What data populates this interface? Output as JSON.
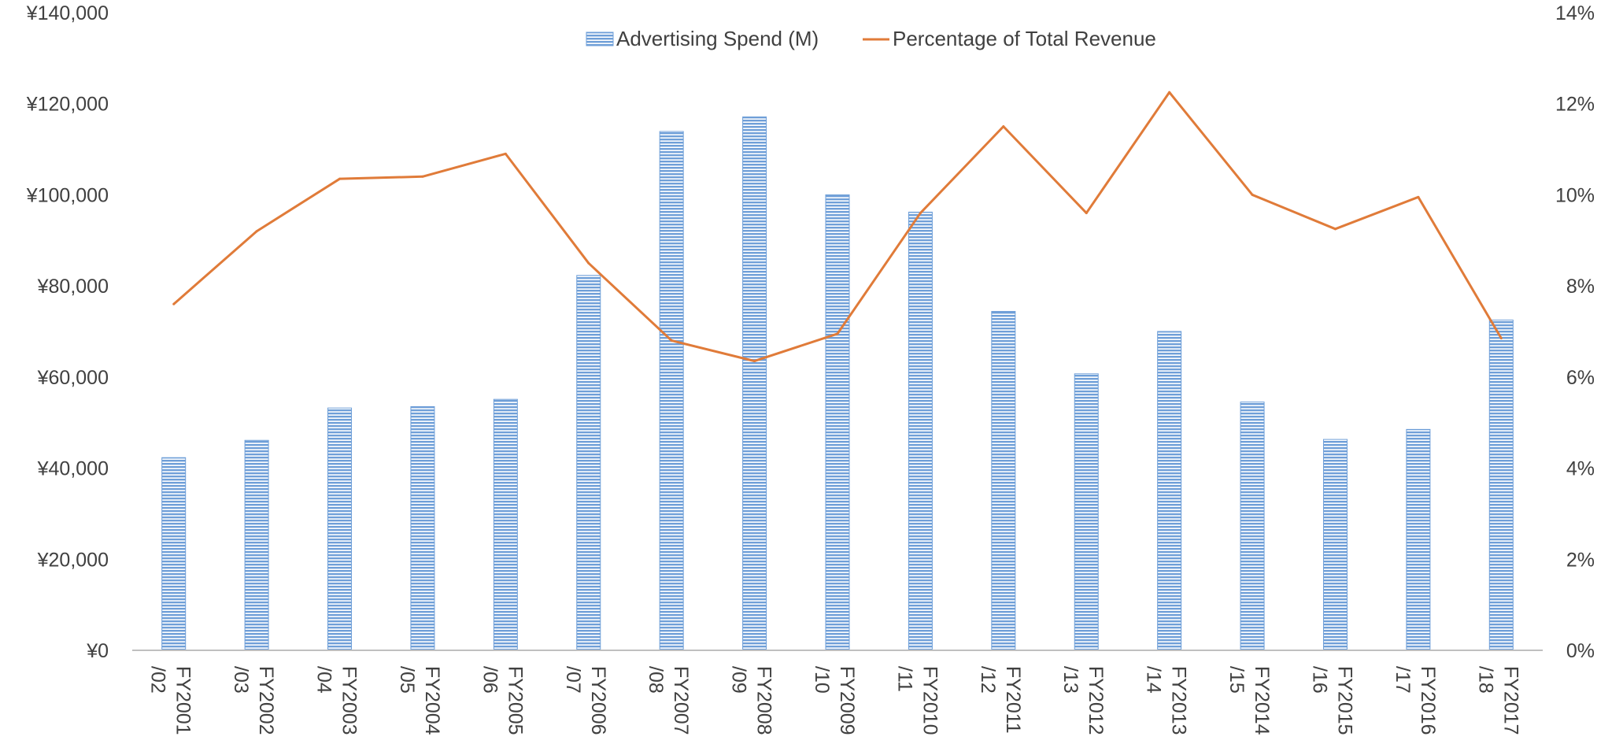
{
  "chart_data": {
    "type": "bar",
    "title": "",
    "legend_position": "top-center",
    "grid": false,
    "categories": [
      [
        "FY2001",
        "/02"
      ],
      [
        "FY2002",
        "/03"
      ],
      [
        "FY2003",
        "/04"
      ],
      [
        "FY2004",
        "/05"
      ],
      [
        "FY2005",
        "/06"
      ],
      [
        "FY2006",
        "/07"
      ],
      [
        "FY2007",
        "/08"
      ],
      [
        "FY2008",
        "/09"
      ],
      [
        "FY2009",
        "/10"
      ],
      [
        "FY2010",
        "/11"
      ],
      [
        "FY2011",
        "/12"
      ],
      [
        "FY2012",
        "/13"
      ],
      [
        "FY2013",
        "/14"
      ],
      [
        "FY2014",
        "/15"
      ],
      [
        "FY2015",
        "/16"
      ],
      [
        "FY2016",
        "/17"
      ],
      [
        "FY2017",
        "/18"
      ]
    ],
    "series": [
      {
        "name": "Advertising Spend (M)",
        "type": "bar",
        "axis": "left",
        "color": "#6f9fd8",
        "values": [
          42300,
          46100,
          53200,
          53500,
          55100,
          82300,
          113900,
          117100,
          100000,
          96200,
          74400,
          60700,
          70000,
          54500,
          46300,
          48500,
          72500
        ]
      },
      {
        "name": "Percentage of Total Revenue",
        "type": "line",
        "axis": "right",
        "color": "#e07b39",
        "values": [
          7.6,
          9.2,
          10.35,
          10.4,
          10.9,
          8.5,
          6.8,
          6.35,
          6.95,
          9.6,
          11.5,
          9.6,
          12.25,
          10.0,
          9.25,
          9.95,
          6.85
        ]
      }
    ],
    "left_axis": {
      "min": 0,
      "max": 140000,
      "step": 20000,
      "tick_labels": [
        "¥0",
        "¥20,000",
        "¥40,000",
        "¥60,000",
        "¥80,000",
        "¥100,000",
        "¥120,000",
        "¥140,000"
      ]
    },
    "right_axis": {
      "min": 0,
      "max": 14,
      "step": 2,
      "tick_labels": [
        "0%",
        "2%",
        "4%",
        "6%",
        "8%",
        "10%",
        "12%",
        "14%"
      ]
    }
  }
}
